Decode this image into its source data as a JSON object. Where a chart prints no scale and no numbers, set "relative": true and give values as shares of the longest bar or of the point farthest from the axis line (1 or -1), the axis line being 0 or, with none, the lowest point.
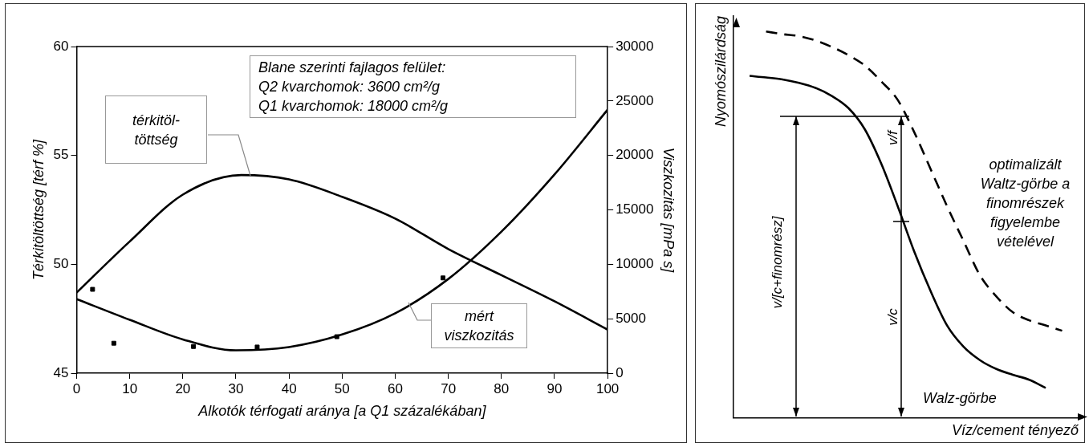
{
  "chart_data": [
    {
      "type": "line",
      "xlabel": "Alkotók térfogati aránya [a Q1 százalékában]",
      "ylabel": "Térkitöltöttség [térf %]",
      "y2label": "Viszkozitás [mPa s]",
      "xlim": [
        0,
        100
      ],
      "xticks": [
        0,
        10,
        20,
        30,
        40,
        50,
        60,
        70,
        80,
        90,
        100
      ],
      "ylim": [
        45,
        60
      ],
      "yticks": [
        45,
        50,
        55,
        60
      ],
      "y2lim": [
        0,
        30000
      ],
      "y2ticks": [
        0,
        5000,
        10000,
        15000,
        20000,
        25000,
        30000
      ],
      "annotations": [
        "Blane szerinti fajlagos felület:\nQ2 kvarchomok: 3600 cm²/g\nQ1 kvarchomok: 18000 cm²/g"
      ],
      "series": [
        {
          "name": "térkitöl-töttség",
          "color": "#000000",
          "x": [
            0,
            10,
            20,
            31,
            40,
            50,
            60,
            70,
            80,
            90,
            100
          ],
          "values": [
            48.7,
            51.05,
            53.2,
            54.1,
            53.9,
            53.1,
            52.1,
            50.7,
            49.5,
            48.3,
            47.0
          ]
        },
        {
          "name": "mért viszkozitás",
          "color": "#000000",
          "axis": "y2",
          "x": [
            0,
            10,
            20,
            30,
            40,
            50,
            60,
            70,
            80,
            90,
            100
          ],
          "values": [
            6800,
            4900,
            3100,
            2100,
            2400,
            3550,
            5500,
            8650,
            13000,
            18250,
            24200
          ]
        },
        {
          "type": "scatter",
          "marker": "square",
          "color": "#000000",
          "axis": "y2",
          "x": [
            3,
            7,
            22,
            34,
            49,
            69
          ],
          "values": [
            7700,
            2750,
            2450,
            2400,
            3350,
            8750
          ]
        }
      ]
    },
    {
      "type": "line",
      "relative": true,
      "xlabel": "Víz/cement tényező",
      "ylabel": "Nyomószilárdság",
      "categories": [
        null,
        null,
        null,
        null,
        null,
        null,
        null,
        null,
        null,
        null,
        null,
        null,
        null,
        null,
        null,
        null,
        null,
        null,
        null,
        null,
        null,
        null
      ],
      "annotations": [
        "v/[c+finomrész]",
        "v/f",
        "v/c"
      ],
      "series": [
        {
          "name": "Walz-görbe",
          "color": "#000000",
          "values": [
            null,
            0.885,
            0.881,
            0.876,
            0.867,
            0.854,
            0.833,
            0.802,
            0.747,
            0.658,
            0.548,
            0.431,
            0.328,
            0.239,
            0.184,
            0.149,
            0.126,
            0.111,
            0.098,
            0.077,
            null,
            null
          ]
        },
        {
          "name": "optimalizált Waltz-görbe a finomrészek figyelembe vételével",
          "color": "#000000",
          "line_style": "dashed",
          "values": [
            null,
            null,
            1,
            0.993,
            0.988,
            0.977,
            0.96,
            0.939,
            0.912,
            0.871,
            0.823,
            0.74,
            0.644,
            0.548,
            0.458,
            0.369,
            0.314,
            0.273,
            0.252,
            0.239,
            0.225,
            null
          ]
        }
      ]
    }
  ]
}
